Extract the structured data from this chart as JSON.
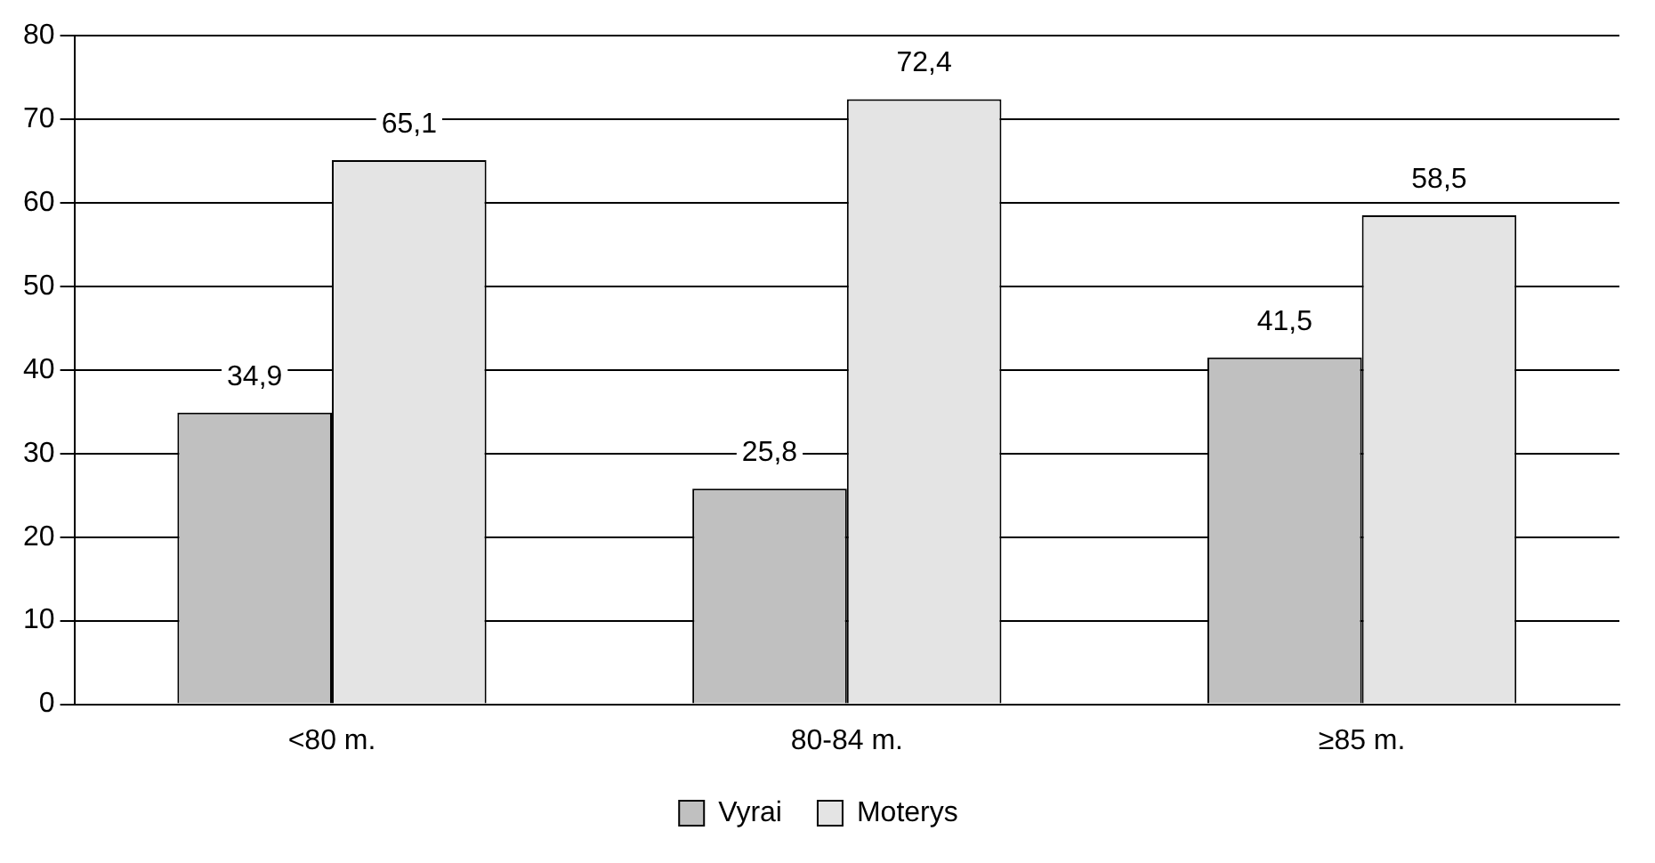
{
  "chart_data": {
    "type": "bar",
    "categories": [
      "<80 m.",
      "80-84 m.",
      "≥85 m."
    ],
    "series": [
      {
        "name": "Vyrai",
        "color": "#c0c0c0",
        "values": [
          34.9,
          25.8,
          41.5
        ],
        "value_labels": [
          "34,9",
          "25,8",
          "41,5"
        ]
      },
      {
        "name": "Moterys",
        "color": "#e4e4e4",
        "values": [
          65.1,
          72.4,
          58.5
        ],
        "value_labels": [
          "65,1",
          "72,4",
          "58,5"
        ]
      }
    ],
    "ylim": [
      0,
      80
    ],
    "yticks": [
      0,
      10,
      20,
      30,
      40,
      50,
      60,
      70,
      80
    ],
    "grid": "y",
    "legend": "bottom"
  }
}
